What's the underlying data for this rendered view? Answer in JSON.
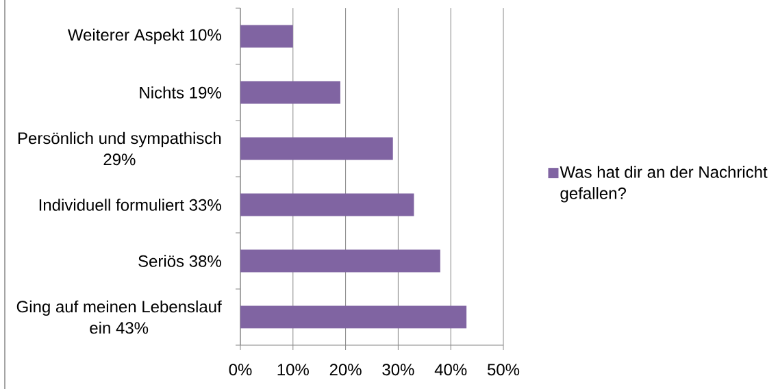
{
  "chart_data": {
    "type": "bar",
    "orientation": "horizontal",
    "categories": [
      "Weiterer Aspekt 10%",
      "Nichts 19%",
      "Persönlich und sympathisch 29%",
      "Individuell formuliert 33%",
      "Seriös 38%",
      "Ging auf meinen Lebenslauf ein 43%"
    ],
    "series": [
      {
        "name": "Was hat dir an der Nachricht gefallen?",
        "color": "#8064a2",
        "values": [
          10,
          19,
          29,
          33,
          38,
          43
        ]
      }
    ],
    "xlim": [
      0,
      50
    ],
    "xticks": [
      {
        "value": 0,
        "label": "0%"
      },
      {
        "value": 10,
        "label": "10%"
      },
      {
        "value": 20,
        "label": "20%"
      },
      {
        "value": 30,
        "label": "30%"
      },
      {
        "value": 40,
        "label": "40%"
      },
      {
        "value": 50,
        "label": "50%"
      }
    ],
    "grid": "x",
    "legend": "right"
  }
}
